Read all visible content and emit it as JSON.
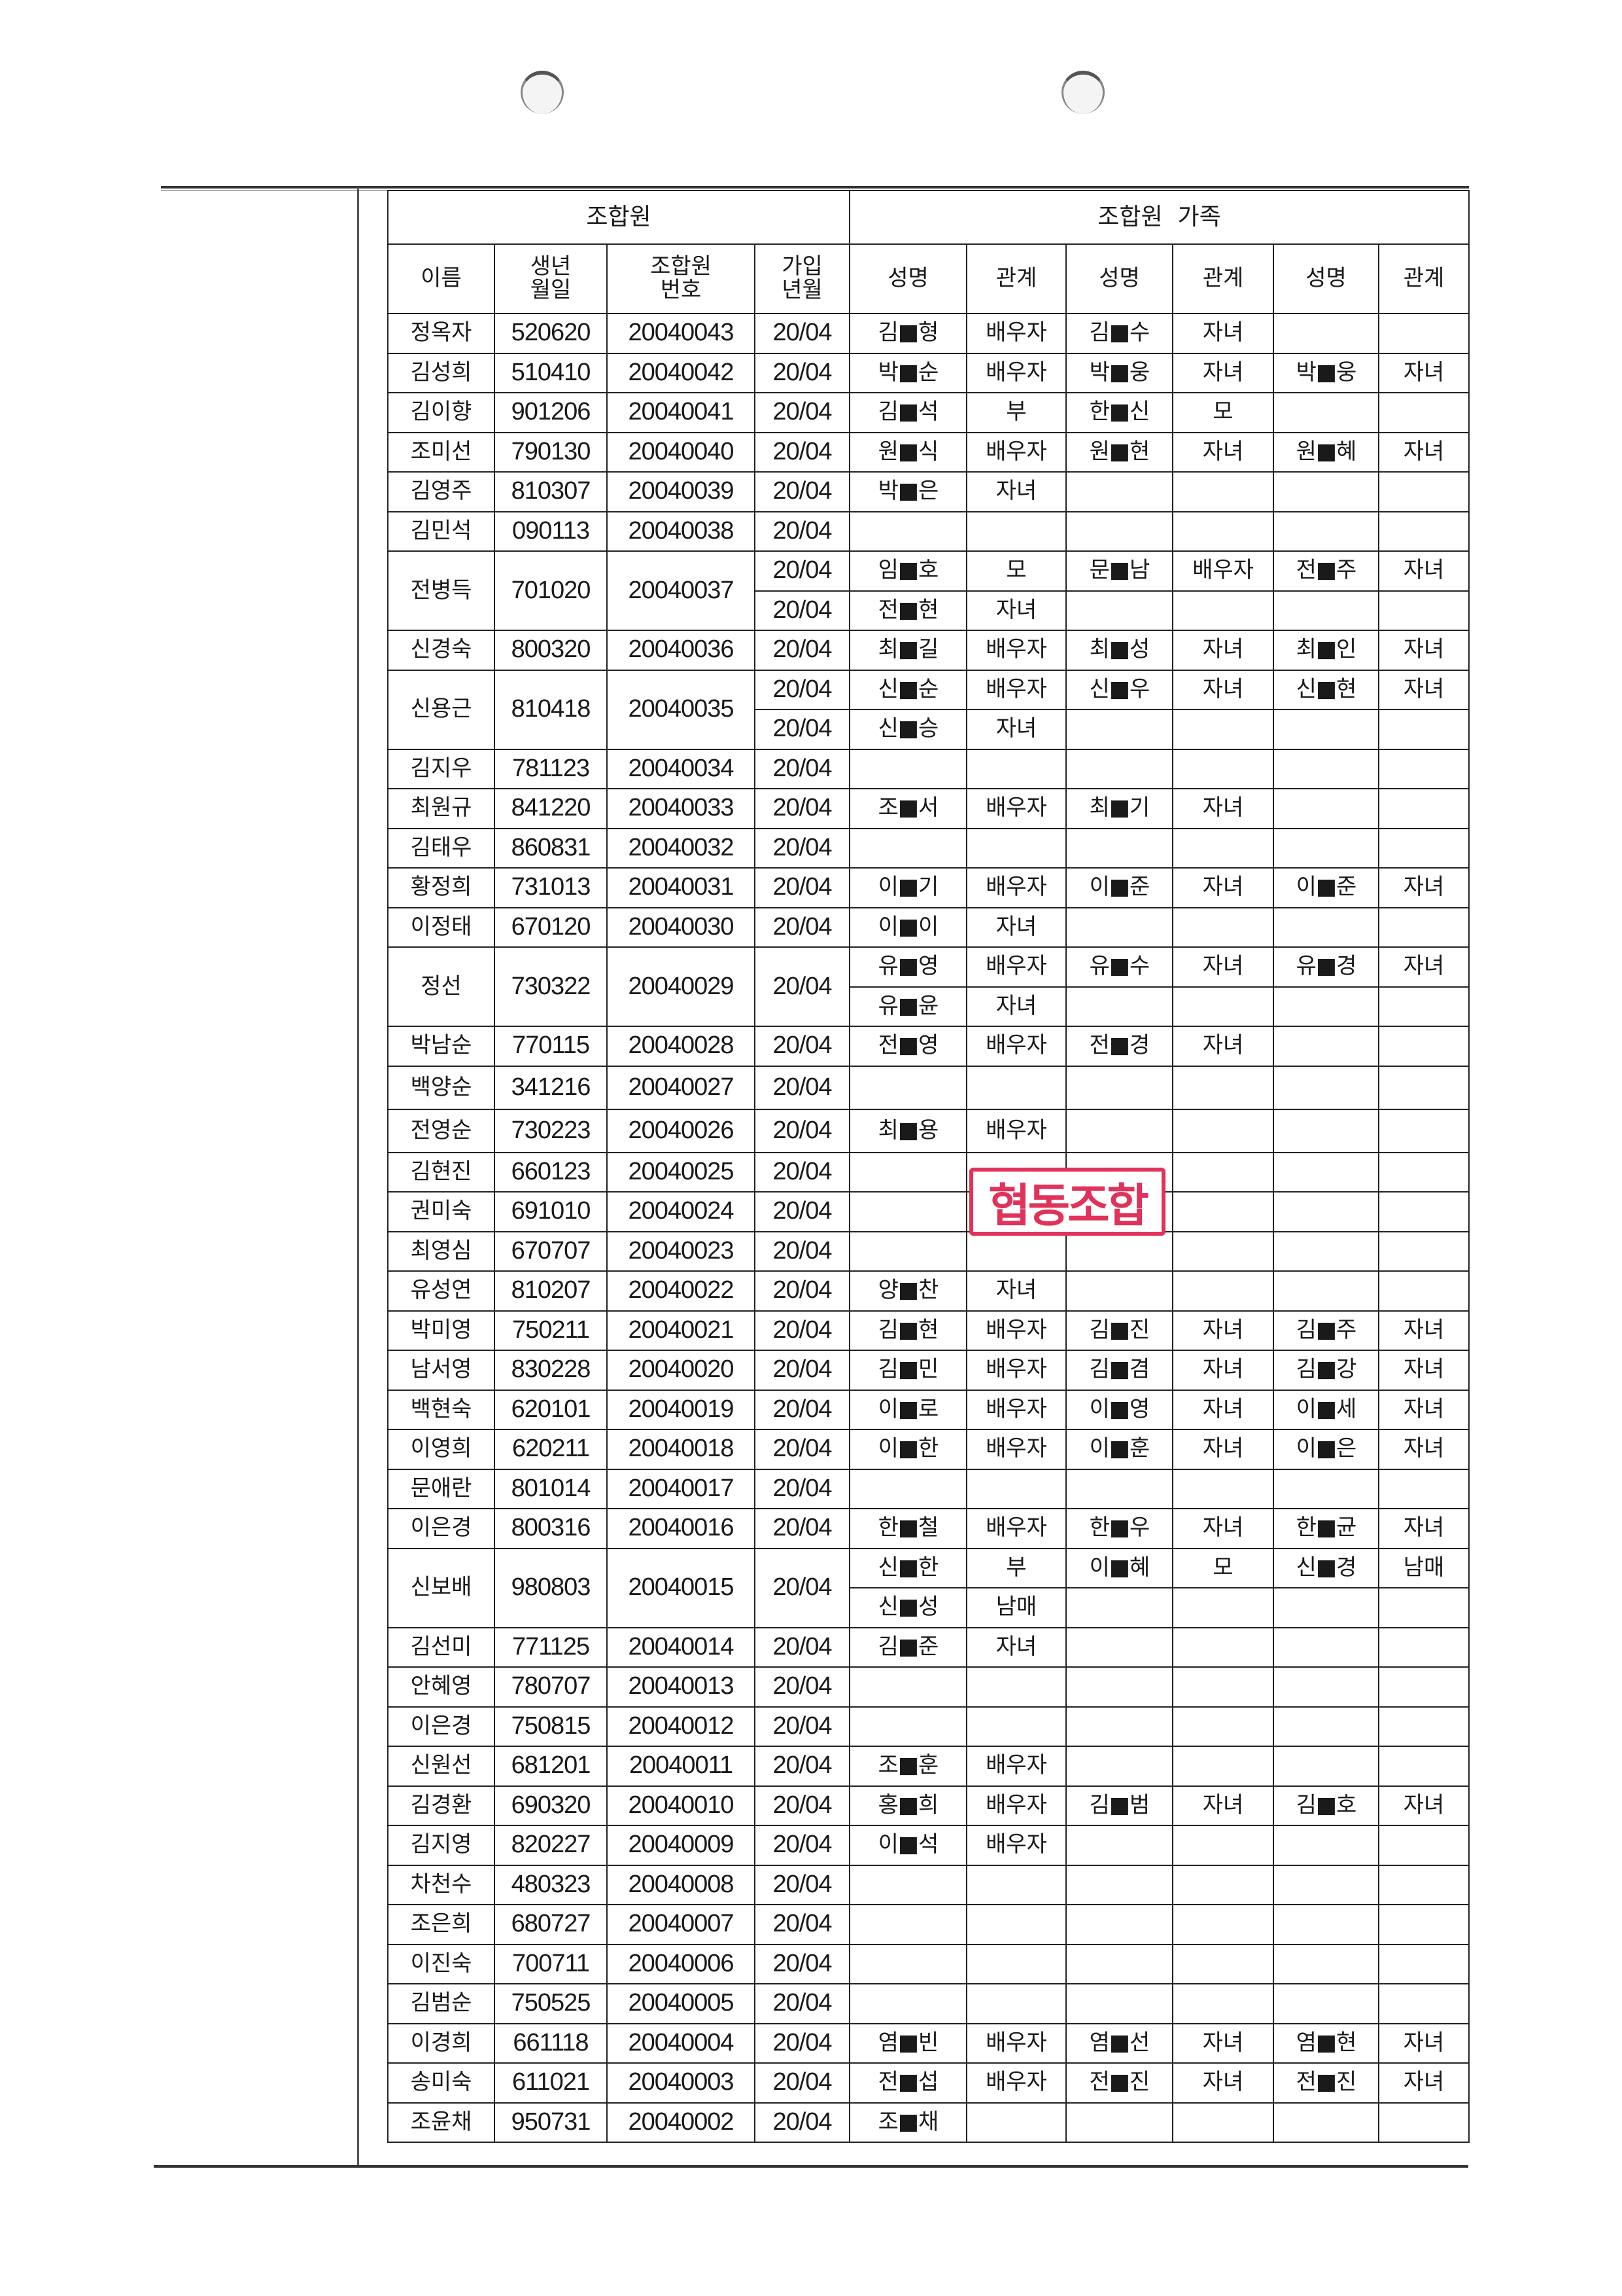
{
  "header": {
    "member_group": "조합원",
    "family_group": "조합원  가족",
    "name": "이름",
    "birth": "생년\n월일",
    "member_no": "조합원\n번호",
    "join": "가입\n년월",
    "fam_name": "성명",
    "fam_rel": "관계"
  },
  "stamp_text": "협동조합",
  "members": [
    {
      "name": "정옥자",
      "birth": "520620",
      "no": "20040043",
      "join": "20/04",
      "family": [
        [
          [
            "김■형",
            "배우자"
          ],
          [
            "김■수",
            "자녀"
          ]
        ]
      ]
    },
    {
      "name": "김성희",
      "birth": "510410",
      "no": "20040042",
      "join": "20/04",
      "family": [
        [
          [
            "박■순",
            "배우자"
          ],
          [
            "박■웅",
            "자녀"
          ],
          [
            "박■웅",
            "자녀"
          ]
        ]
      ]
    },
    {
      "name": "김이향",
      "birth": "901206",
      "no": "20040041",
      "join": "20/04",
      "family": [
        [
          [
            "김■석",
            "부"
          ],
          [
            "한■신",
            "모"
          ]
        ]
      ]
    },
    {
      "name": "조미선",
      "birth": "790130",
      "no": "20040040",
      "join": "20/04",
      "family": [
        [
          [
            "원■식",
            "배우자"
          ],
          [
            "원■현",
            "자녀"
          ],
          [
            "원■혜",
            "자녀"
          ]
        ]
      ]
    },
    {
      "name": "김영주",
      "birth": "810307",
      "no": "20040039",
      "join": "20/04",
      "family": [
        [
          [
            "박■은",
            "자녀"
          ]
        ]
      ]
    },
    {
      "name": "김민석",
      "birth": "090113",
      "no": "20040038",
      "join": "20/04",
      "family": [
        []
      ]
    },
    {
      "name": "전병득",
      "birth": "701020",
      "no": "20040037",
      "join": [
        "20/04",
        "20/04"
      ],
      "family": [
        [
          [
            "임■호",
            "모"
          ],
          [
            "문■남",
            "배우자"
          ],
          [
            "전■주",
            "자녀"
          ]
        ],
        [
          [
            "전■현",
            "자녀"
          ]
        ]
      ]
    },
    {
      "name": "신경숙",
      "birth": "800320",
      "no": "20040036",
      "join": "20/04",
      "family": [
        [
          [
            "최■길",
            "배우자"
          ],
          [
            "최■성",
            "자녀"
          ],
          [
            "최■인",
            "자녀"
          ]
        ]
      ]
    },
    {
      "name": "신용근",
      "birth": "810418",
      "no": "20040035",
      "join": [
        "20/04",
        "20/04"
      ],
      "family": [
        [
          [
            "신■순",
            "배우자"
          ],
          [
            "신■우",
            "자녀"
          ],
          [
            "신■현",
            "자녀"
          ]
        ],
        [
          [
            "신■승",
            "자녀"
          ]
        ]
      ]
    },
    {
      "name": "김지우",
      "birth": "781123",
      "no": "20040034",
      "join": "20/04",
      "family": [
        []
      ]
    },
    {
      "name": "최원규",
      "birth": "841220",
      "no": "20040033",
      "join": "20/04",
      "family": [
        [
          [
            "조■서",
            "배우자"
          ],
          [
            "최■기",
            "자녀"
          ]
        ]
      ]
    },
    {
      "name": "김태우",
      "birth": "860831",
      "no": "20040032",
      "join": "20/04",
      "family": [
        []
      ]
    },
    {
      "name": "황정희",
      "birth": "731013",
      "no": "20040031",
      "join": "20/04",
      "family": [
        [
          [
            "이■기",
            "배우자"
          ],
          [
            "이■준",
            "자녀"
          ],
          [
            "이■준",
            "자녀"
          ]
        ]
      ]
    },
    {
      "name": "이정태",
      "birth": "670120",
      "no": "20040030",
      "join": "20/04",
      "family": [
        [
          [
            "이■이",
            "자녀"
          ]
        ]
      ]
    },
    {
      "name": "정선",
      "birth": "730322",
      "no": "20040029",
      "join": "20/04",
      "family": [
        [
          [
            "유■영",
            "배우자"
          ],
          [
            "유■수",
            "자녀"
          ],
          [
            "유■경",
            "자녀"
          ]
        ],
        [
          [
            "유■윤",
            "자녀"
          ]
        ]
      ]
    },
    {
      "name": "박남순",
      "birth": "770115",
      "no": "20040028",
      "join": "20/04",
      "family": [
        [
          [
            "전■영",
            "배우자"
          ],
          [
            "전■경",
            "자녀"
          ]
        ]
      ]
    },
    {
      "name": "백양순",
      "birth": "341216",
      "no": "20040027",
      "join": "20/04",
      "family": [
        []
      ]
    },
    {
      "name": "전영순",
      "birth": "730223",
      "no": "20040026",
      "join": "20/04",
      "family": [
        [
          [
            "최■용",
            "배우자"
          ]
        ]
      ]
    },
    {
      "name": "김현진",
      "birth": "660123",
      "no": "20040025",
      "join": "20/04",
      "family": [
        []
      ]
    },
    {
      "name": "권미숙",
      "birth": "691010",
      "no": "20040024",
      "join": "20/04",
      "family": [
        []
      ]
    },
    {
      "name": "최영심",
      "birth": "670707",
      "no": "20040023",
      "join": "20/04",
      "family": [
        []
      ]
    },
    {
      "name": "유성연",
      "birth": "810207",
      "no": "20040022",
      "join": "20/04",
      "family": [
        [
          [
            "양■찬",
            "자녀"
          ]
        ]
      ]
    },
    {
      "name": "박미영",
      "birth": "750211",
      "no": "20040021",
      "join": "20/04",
      "family": [
        [
          [
            "김■현",
            "배우자"
          ],
          [
            "김■진",
            "자녀"
          ],
          [
            "김■주",
            "자녀"
          ]
        ]
      ]
    },
    {
      "name": "남서영",
      "birth": "830228",
      "no": "20040020",
      "join": "20/04",
      "family": [
        [
          [
            "김■민",
            "배우자"
          ],
          [
            "김■겸",
            "자녀"
          ],
          [
            "김■강",
            "자녀"
          ]
        ]
      ]
    },
    {
      "name": "백현숙",
      "birth": "620101",
      "no": "20040019",
      "join": "20/04",
      "family": [
        [
          [
            "이■로",
            "배우자"
          ],
          [
            "이■영",
            "자녀"
          ],
          [
            "이■세",
            "자녀"
          ]
        ]
      ]
    },
    {
      "name": "이영희",
      "birth": "620211",
      "no": "20040018",
      "join": "20/04",
      "family": [
        [
          [
            "이■한",
            "배우자"
          ],
          [
            "이■훈",
            "자녀"
          ],
          [
            "이■은",
            "자녀"
          ]
        ]
      ]
    },
    {
      "name": "문애란",
      "birth": "801014",
      "no": "20040017",
      "join": "20/04",
      "family": [
        []
      ]
    },
    {
      "name": "이은경",
      "birth": "800316",
      "no": "20040016",
      "join": "20/04",
      "family": [
        [
          [
            "한■철",
            "배우자"
          ],
          [
            "한■우",
            "자녀"
          ],
          [
            "한■균",
            "자녀"
          ]
        ]
      ]
    },
    {
      "name": "신보배",
      "birth": "980803",
      "no": "20040015",
      "join": "20/04",
      "family": [
        [
          [
            "신■한",
            "부"
          ],
          [
            "이■혜",
            "모"
          ],
          [
            "신■경",
            "남매"
          ]
        ],
        [
          [
            "신■성",
            "남매"
          ]
        ]
      ]
    },
    {
      "name": "김선미",
      "birth": "771125",
      "no": "20040014",
      "join": "20/04",
      "family": [
        [
          [
            "김■준",
            "자녀"
          ]
        ]
      ]
    },
    {
      "name": "안혜영",
      "birth": "780707",
      "no": "20040013",
      "join": "20/04",
      "family": [
        []
      ]
    },
    {
      "name": "이은경",
      "birth": "750815",
      "no": "20040012",
      "join": "20/04",
      "family": [
        []
      ]
    },
    {
      "name": "신원선",
      "birth": "681201",
      "no": "20040011",
      "join": "20/04",
      "family": [
        [
          [
            "조■훈",
            "배우자"
          ]
        ]
      ]
    },
    {
      "name": "김경환",
      "birth": "690320",
      "no": "20040010",
      "join": "20/04",
      "family": [
        [
          [
            "홍■희",
            "배우자"
          ],
          [
            "김■범",
            "자녀"
          ],
          [
            "김■호",
            "자녀"
          ]
        ]
      ]
    },
    {
      "name": "김지영",
      "birth": "820227",
      "no": "20040009",
      "join": "20/04",
      "family": [
        [
          [
            "이■석",
            "배우자"
          ]
        ]
      ]
    },
    {
      "name": "차천수",
      "birth": "480323",
      "no": "20040008",
      "join": "20/04",
      "family": [
        []
      ]
    },
    {
      "name": "조은희",
      "birth": "680727",
      "no": "20040007",
      "join": "20/04",
      "family": [
        []
      ]
    },
    {
      "name": "이진숙",
      "birth": "700711",
      "no": "20040006",
      "join": "20/04",
      "family": [
        []
      ]
    },
    {
      "name": "김범순",
      "birth": "750525",
      "no": "20040005",
      "join": "20/04",
      "family": [
        []
      ]
    },
    {
      "name": "이경희",
      "birth": "661118",
      "no": "20040004",
      "join": "20/04",
      "family": [
        [
          [
            "염■빈",
            "배우자"
          ],
          [
            "염■선",
            "자녀"
          ],
          [
            "염■현",
            "자녀"
          ]
        ]
      ]
    },
    {
      "name": "송미숙",
      "birth": "611021",
      "no": "20040003",
      "join": "20/04",
      "family": [
        [
          [
            "전■섭",
            "배우자"
          ],
          [
            "전■진",
            "자녀"
          ],
          [
            "전■진",
            "자녀"
          ]
        ]
      ]
    },
    {
      "name": "조윤채",
      "birth": "950731",
      "no": "20040002",
      "join": "20/04",
      "family": [
        [
          [
            "조■채",
            ""
          ]
        ]
      ]
    }
  ]
}
